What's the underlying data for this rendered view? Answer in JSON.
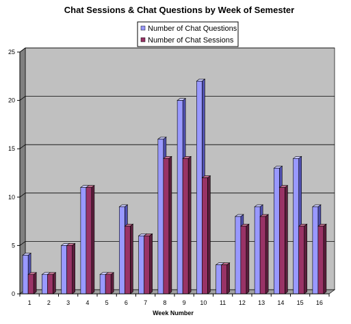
{
  "colors": {
    "plot_bg": "#c0c0c0",
    "wall_side": "#808080",
    "floor": "#a0a0a0",
    "grid": "#000000",
    "series": [
      {
        "front": "#9999ff",
        "side": "#5050b0",
        "top": "#ccccff"
      },
      {
        "front": "#993366",
        "side": "#5c1f3d",
        "top": "#c2708f"
      }
    ]
  },
  "chart_data": {
    "type": "bar",
    "title": "Chat Sessions & Chat Questions by Week of Semester",
    "xlabel": "Week Number",
    "ylabel": "",
    "ylim": [
      0,
      25
    ],
    "yticks": [
      "0",
      "5",
      "10",
      "15",
      "20",
      "25"
    ],
    "categories": [
      "1",
      "2",
      "3",
      "4",
      "5",
      "6",
      "7",
      "8",
      "9",
      "10",
      "11",
      "12",
      "13",
      "14",
      "15",
      "16"
    ],
    "grid": true,
    "legend_position": "top-center",
    "series": [
      {
        "name": "Number of Chat Questions",
        "values": [
          4,
          2,
          5,
          11,
          2,
          9,
          6,
          16,
          20,
          22,
          3,
          8,
          9,
          13,
          14,
          9
        ]
      },
      {
        "name": "Number of Chat Sessions",
        "values": [
          2,
          2,
          5,
          11,
          2,
          7,
          6,
          14,
          14,
          12,
          3,
          7,
          8,
          11,
          7,
          7
        ]
      }
    ]
  }
}
